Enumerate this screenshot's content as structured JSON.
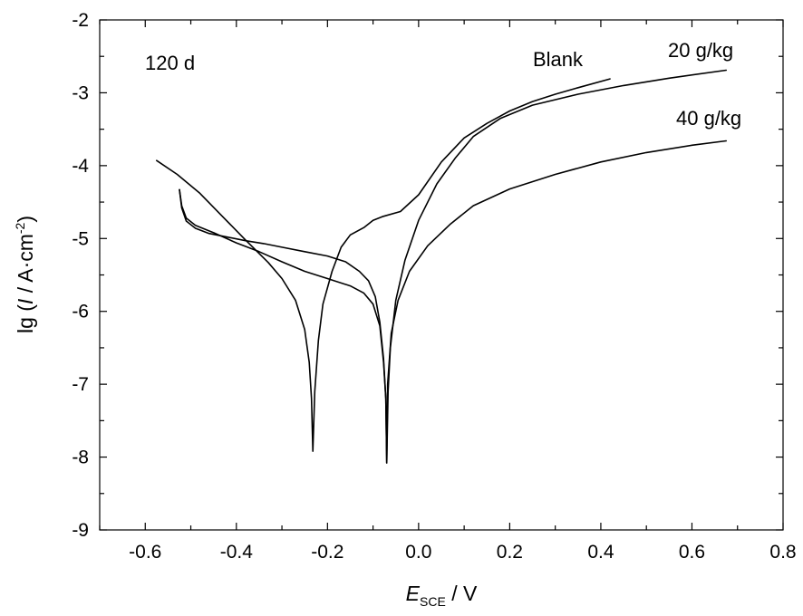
{
  "chart_data": {
    "type": "line",
    "title": "",
    "xlabel": {
      "main": "E",
      "sub": "SCE",
      "unit": " / V"
    },
    "ylabel": {
      "prefix": "lg (",
      "var": "I",
      "mid": " / A·cm",
      "sup": "-2",
      "suffix": ")"
    },
    "xlim": [
      -0.7,
      0.8
    ],
    "ylim": [
      -9,
      -2
    ],
    "xticks": [
      -0.6,
      -0.4,
      -0.2,
      0.0,
      0.2,
      0.4,
      0.6,
      0.8
    ],
    "xtick_labels": [
      "-0.6",
      "-0.4",
      "-0.2",
      "0.0",
      "0.2",
      "0.4",
      "0.6",
      "0.8"
    ],
    "yticks": [
      -9,
      -8,
      -7,
      -6,
      -5,
      -4,
      -3,
      -2
    ],
    "ytick_labels": [
      "-9",
      "-8",
      "-7",
      "-6",
      "-5",
      "-4",
      "-3",
      "-2"
    ],
    "grid": false,
    "annotations": [
      "120 d"
    ],
    "series": [
      {
        "name": "Blank",
        "points": [
          [
            -0.575,
            -3.93
          ],
          [
            -0.53,
            -4.12
          ],
          [
            -0.48,
            -4.38
          ],
          [
            -0.43,
            -4.7
          ],
          [
            -0.38,
            -5.02
          ],
          [
            -0.33,
            -5.33
          ],
          [
            -0.3,
            -5.55
          ],
          [
            -0.27,
            -5.85
          ],
          [
            -0.25,
            -6.25
          ],
          [
            -0.24,
            -6.7
          ],
          [
            -0.235,
            -7.2
          ],
          [
            -0.232,
            -7.92
          ],
          [
            -0.228,
            -7.1
          ],
          [
            -0.22,
            -6.4
          ],
          [
            -0.21,
            -5.9
          ],
          [
            -0.19,
            -5.45
          ],
          [
            -0.17,
            -5.12
          ],
          [
            -0.15,
            -4.95
          ],
          [
            -0.12,
            -4.85
          ],
          [
            -0.1,
            -4.75
          ],
          [
            -0.08,
            -4.7
          ],
          [
            -0.04,
            -4.63
          ],
          [
            0.0,
            -4.4
          ],
          [
            0.05,
            -3.95
          ],
          [
            0.1,
            -3.62
          ],
          [
            0.15,
            -3.42
          ],
          [
            0.2,
            -3.25
          ],
          [
            0.25,
            -3.12
          ],
          [
            0.3,
            -3.02
          ],
          [
            0.35,
            -2.93
          ],
          [
            0.42,
            -2.81
          ]
        ]
      },
      {
        "name": "20 g/kg",
        "points": [
          [
            -0.525,
            -4.33
          ],
          [
            -0.52,
            -4.55
          ],
          [
            -0.51,
            -4.72
          ],
          [
            -0.49,
            -4.82
          ],
          [
            -0.45,
            -4.92
          ],
          [
            -0.4,
            -5.06
          ],
          [
            -0.35,
            -5.18
          ],
          [
            -0.3,
            -5.32
          ],
          [
            -0.25,
            -5.45
          ],
          [
            -0.2,
            -5.55
          ],
          [
            -0.15,
            -5.65
          ],
          [
            -0.12,
            -5.75
          ],
          [
            -0.1,
            -5.9
          ],
          [
            -0.085,
            -6.2
          ],
          [
            -0.077,
            -6.7
          ],
          [
            -0.072,
            -7.2
          ],
          [
            -0.07,
            -8.08
          ],
          [
            -0.067,
            -7.1
          ],
          [
            -0.062,
            -6.5
          ],
          [
            -0.05,
            -5.85
          ],
          [
            -0.03,
            -5.3
          ],
          [
            0.0,
            -4.75
          ],
          [
            0.04,
            -4.25
          ],
          [
            0.08,
            -3.9
          ],
          [
            0.12,
            -3.6
          ],
          [
            0.18,
            -3.35
          ],
          [
            0.25,
            -3.17
          ],
          [
            0.35,
            -3.02
          ],
          [
            0.45,
            -2.9
          ],
          [
            0.55,
            -2.8
          ],
          [
            0.675,
            -2.69
          ]
        ]
      },
      {
        "name": "40 g/kg",
        "points": [
          [
            -0.525,
            -4.33
          ],
          [
            -0.52,
            -4.58
          ],
          [
            -0.51,
            -4.76
          ],
          [
            -0.49,
            -4.86
          ],
          [
            -0.46,
            -4.93
          ],
          [
            -0.42,
            -4.98
          ],
          [
            -0.38,
            -5.03
          ],
          [
            -0.34,
            -5.07
          ],
          [
            -0.3,
            -5.12
          ],
          [
            -0.25,
            -5.18
          ],
          [
            -0.2,
            -5.24
          ],
          [
            -0.16,
            -5.32
          ],
          [
            -0.13,
            -5.45
          ],
          [
            -0.11,
            -5.58
          ],
          [
            -0.095,
            -5.8
          ],
          [
            -0.085,
            -6.15
          ],
          [
            -0.077,
            -6.65
          ],
          [
            -0.072,
            -7.2
          ],
          [
            -0.07,
            -8.08
          ],
          [
            -0.068,
            -7.0
          ],
          [
            -0.06,
            -6.3
          ],
          [
            -0.045,
            -5.85
          ],
          [
            -0.02,
            -5.45
          ],
          [
            0.02,
            -5.1
          ],
          [
            0.07,
            -4.8
          ],
          [
            0.12,
            -4.55
          ],
          [
            0.2,
            -4.32
          ],
          [
            0.3,
            -4.12
          ],
          [
            0.4,
            -3.95
          ],
          [
            0.5,
            -3.82
          ],
          [
            0.6,
            -3.72
          ],
          [
            0.675,
            -3.66
          ]
        ]
      }
    ]
  }
}
